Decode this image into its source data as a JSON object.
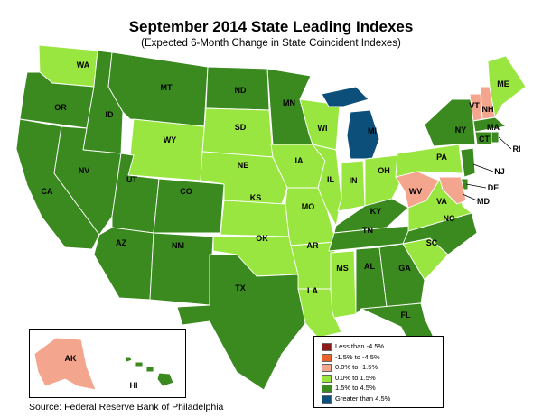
{
  "title": "September 2014 State Leading Indexes",
  "subtitle": "(Expected 6-Month Change in State Coincident Indexes)",
  "source": "Source: Federal Reserve Bank of Philadelphia",
  "colors": {
    "lt_neg45": "#8b1a1a",
    "neg45_neg15": "#e8632b",
    "neg15_0": "#f4a58e",
    "pos0_15": "#99e640",
    "pos15_45": "#3a8a1f",
    "gt45": "#0b4f7a"
  },
  "legend": [
    {
      "label": "Less than -4.5%",
      "color": "#8b1a1a"
    },
    {
      "label": "-1.5% to -4.5%",
      "color": "#e8632b"
    },
    {
      "label": "0.0% to -1.5%",
      "color": "#f4a58e"
    },
    {
      "label": "0.0% to  1.5%",
      "color": "#99e640"
    },
    {
      "label": "1.5% to  4.5%",
      "color": "#3a8a1f"
    },
    {
      "label": "Greater than 4.5%",
      "color": "#0b4f7a"
    }
  ],
  "states": [
    {
      "code": "WA",
      "category": "pos0_15"
    },
    {
      "code": "OR",
      "category": "pos15_45"
    },
    {
      "code": "CA",
      "category": "pos15_45"
    },
    {
      "code": "ID",
      "category": "pos15_45"
    },
    {
      "code": "NV",
      "category": "pos15_45"
    },
    {
      "code": "MT",
      "category": "pos15_45"
    },
    {
      "code": "WY",
      "category": "pos0_15"
    },
    {
      "code": "UT",
      "category": "pos15_45"
    },
    {
      "code": "CO",
      "category": "pos15_45"
    },
    {
      "code": "AZ",
      "category": "pos15_45"
    },
    {
      "code": "NM",
      "category": "pos15_45"
    },
    {
      "code": "ND",
      "category": "pos15_45"
    },
    {
      "code": "SD",
      "category": "pos0_15"
    },
    {
      "code": "NE",
      "category": "pos0_15"
    },
    {
      "code": "KS",
      "category": "pos0_15"
    },
    {
      "code": "OK",
      "category": "pos0_15"
    },
    {
      "code": "TX",
      "category": "pos15_45"
    },
    {
      "code": "MN",
      "category": "pos15_45"
    },
    {
      "code": "IA",
      "category": "pos0_15"
    },
    {
      "code": "MO",
      "category": "pos0_15"
    },
    {
      "code": "AR",
      "category": "pos0_15"
    },
    {
      "code": "LA",
      "category": "pos0_15"
    },
    {
      "code": "WI",
      "category": "pos0_15"
    },
    {
      "code": "IL",
      "category": "pos0_15"
    },
    {
      "code": "MI",
      "category": "gt45"
    },
    {
      "code": "IN",
      "category": "pos0_15"
    },
    {
      "code": "OH",
      "category": "pos0_15"
    },
    {
      "code": "KY",
      "category": "pos15_45"
    },
    {
      "code": "TN",
      "category": "pos15_45"
    },
    {
      "code": "MS",
      "category": "pos0_15"
    },
    {
      "code": "AL",
      "category": "pos15_45"
    },
    {
      "code": "GA",
      "category": "pos15_45"
    },
    {
      "code": "FL",
      "category": "pos15_45"
    },
    {
      "code": "SC",
      "category": "pos0_15"
    },
    {
      "code": "NC",
      "category": "pos15_45"
    },
    {
      "code": "VA",
      "category": "pos0_15"
    },
    {
      "code": "WV",
      "category": "neg15_0"
    },
    {
      "code": "PA",
      "category": "pos0_15"
    },
    {
      "code": "NY",
      "category": "pos15_45"
    },
    {
      "code": "VT",
      "category": "neg15_0"
    },
    {
      "code": "NH",
      "category": "neg15_0"
    },
    {
      "code": "ME",
      "category": "pos0_15"
    },
    {
      "code": "MA",
      "category": "pos15_45"
    },
    {
      "code": "RI",
      "category": "pos15_45"
    },
    {
      "code": "CT",
      "category": "pos15_45"
    },
    {
      "code": "NJ",
      "category": "pos15_45"
    },
    {
      "code": "DE",
      "category": "pos15_45"
    },
    {
      "code": "MD",
      "category": "neg15_0"
    },
    {
      "code": "AK",
      "category": "neg15_0"
    },
    {
      "code": "HI",
      "category": "pos15_45"
    }
  ]
}
